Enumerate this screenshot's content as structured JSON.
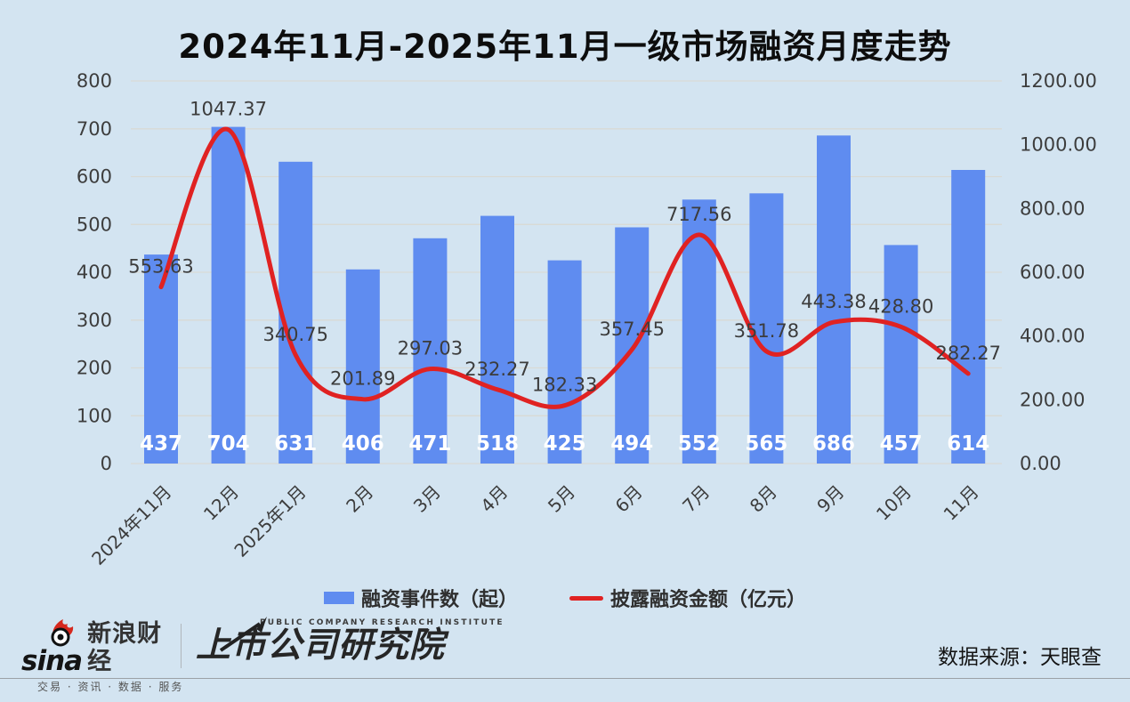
{
  "title": "2024年11月-2025年11月一级市场融资月度走势",
  "chart_data": {
    "type": "bar+line",
    "categories": [
      "2024年11月",
      "12月",
      "2025年1月",
      "2月",
      "3月",
      "4月",
      "5月",
      "6月",
      "7月",
      "8月",
      "9月",
      "10月",
      "11月"
    ],
    "series": [
      {
        "name": "融资事件数（起）",
        "type": "bar",
        "axis": "left",
        "values": [
          437,
          704,
          631,
          406,
          471,
          518,
          425,
          494,
          552,
          565,
          686,
          457,
          614
        ]
      },
      {
        "name": "披露融资金额（亿元）",
        "type": "line",
        "axis": "right",
        "values": [
          553.63,
          1047.37,
          340.75,
          201.89,
          297.03,
          232.27,
          182.33,
          357.45,
          717.56,
          351.78,
          443.38,
          428.8,
          282.27
        ]
      }
    ],
    "left_axis": {
      "min": 0,
      "max": 800,
      "step": 100
    },
    "right_axis": {
      "min": 0,
      "max": 1200,
      "step": 200,
      "decimals": 2
    },
    "grid": true,
    "legend_position": "bottom",
    "title": "2024年11月-2025年11月一级市场融资月度走势"
  },
  "legend": {
    "bar_label": "融资事件数（起）",
    "line_label": "披露融资金额（亿元）"
  },
  "footer": {
    "sina_word": "sina",
    "sina_brand": "新浪财经",
    "sina_tagline": "交易 · 资讯 · 数据 · 服务",
    "institute_subtitle": "PUBLIC COMPANY RESEARCH INSTITUTE",
    "institute_name": "上市公司研究院",
    "source": "数据来源：天眼查"
  },
  "colors": {
    "background": "#d3e4f1",
    "bar": "#5f8cf0",
    "line": "#e02222",
    "grid": "#d9dad5",
    "axis_text": "#3d3d3d",
    "bar_label": "#ffffff",
    "data_label": "#3c3c3c"
  }
}
